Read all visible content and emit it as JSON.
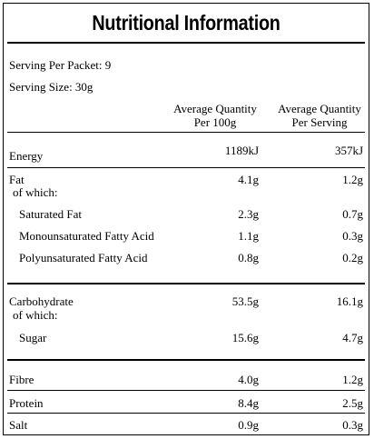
{
  "title": "Nutritional Information",
  "serving_per_packet": "Serving Per Packet: 9",
  "serving_size": "Serving Size: 30g",
  "columns": {
    "per100_line1": "Average Quantity",
    "per100_line2": "Per 100g",
    "perserving_line1": "Average Quantity",
    "perserving_line2": "Per Serving"
  },
  "rows": {
    "energy": {
      "label": "Energy",
      "per100": "1189kJ",
      "serving": "357kJ"
    },
    "fat": {
      "label": "Fat",
      "sublabel": "of which:",
      "per100": "4.1g",
      "serving": "1.2g"
    },
    "saturated": {
      "label": "Saturated Fat",
      "per100": "2.3g",
      "serving": "0.7g"
    },
    "mono": {
      "label": "Monounsaturated Fatty Acid",
      "per100": "1.1g",
      "serving": "0.3g"
    },
    "poly": {
      "label": "Polyunsaturated Fatty Acid",
      "per100": "0.8g",
      "serving": "0.2g"
    },
    "carb": {
      "label": "Carbohydrate",
      "sublabel": "of which:",
      "per100": "53.5g",
      "serving": "16.1g"
    },
    "sugar": {
      "label": "Sugar",
      "per100": "15.6g",
      "serving": "4.7g"
    },
    "fibre": {
      "label": "Fibre",
      "per100": "4.0g",
      "serving": "1.2g"
    },
    "protein": {
      "label": "Protein",
      "per100": "8.4g",
      "serving": "2.5g"
    },
    "salt": {
      "label": "Salt",
      "per100": "0.9g",
      "serving": "0.3g"
    }
  }
}
